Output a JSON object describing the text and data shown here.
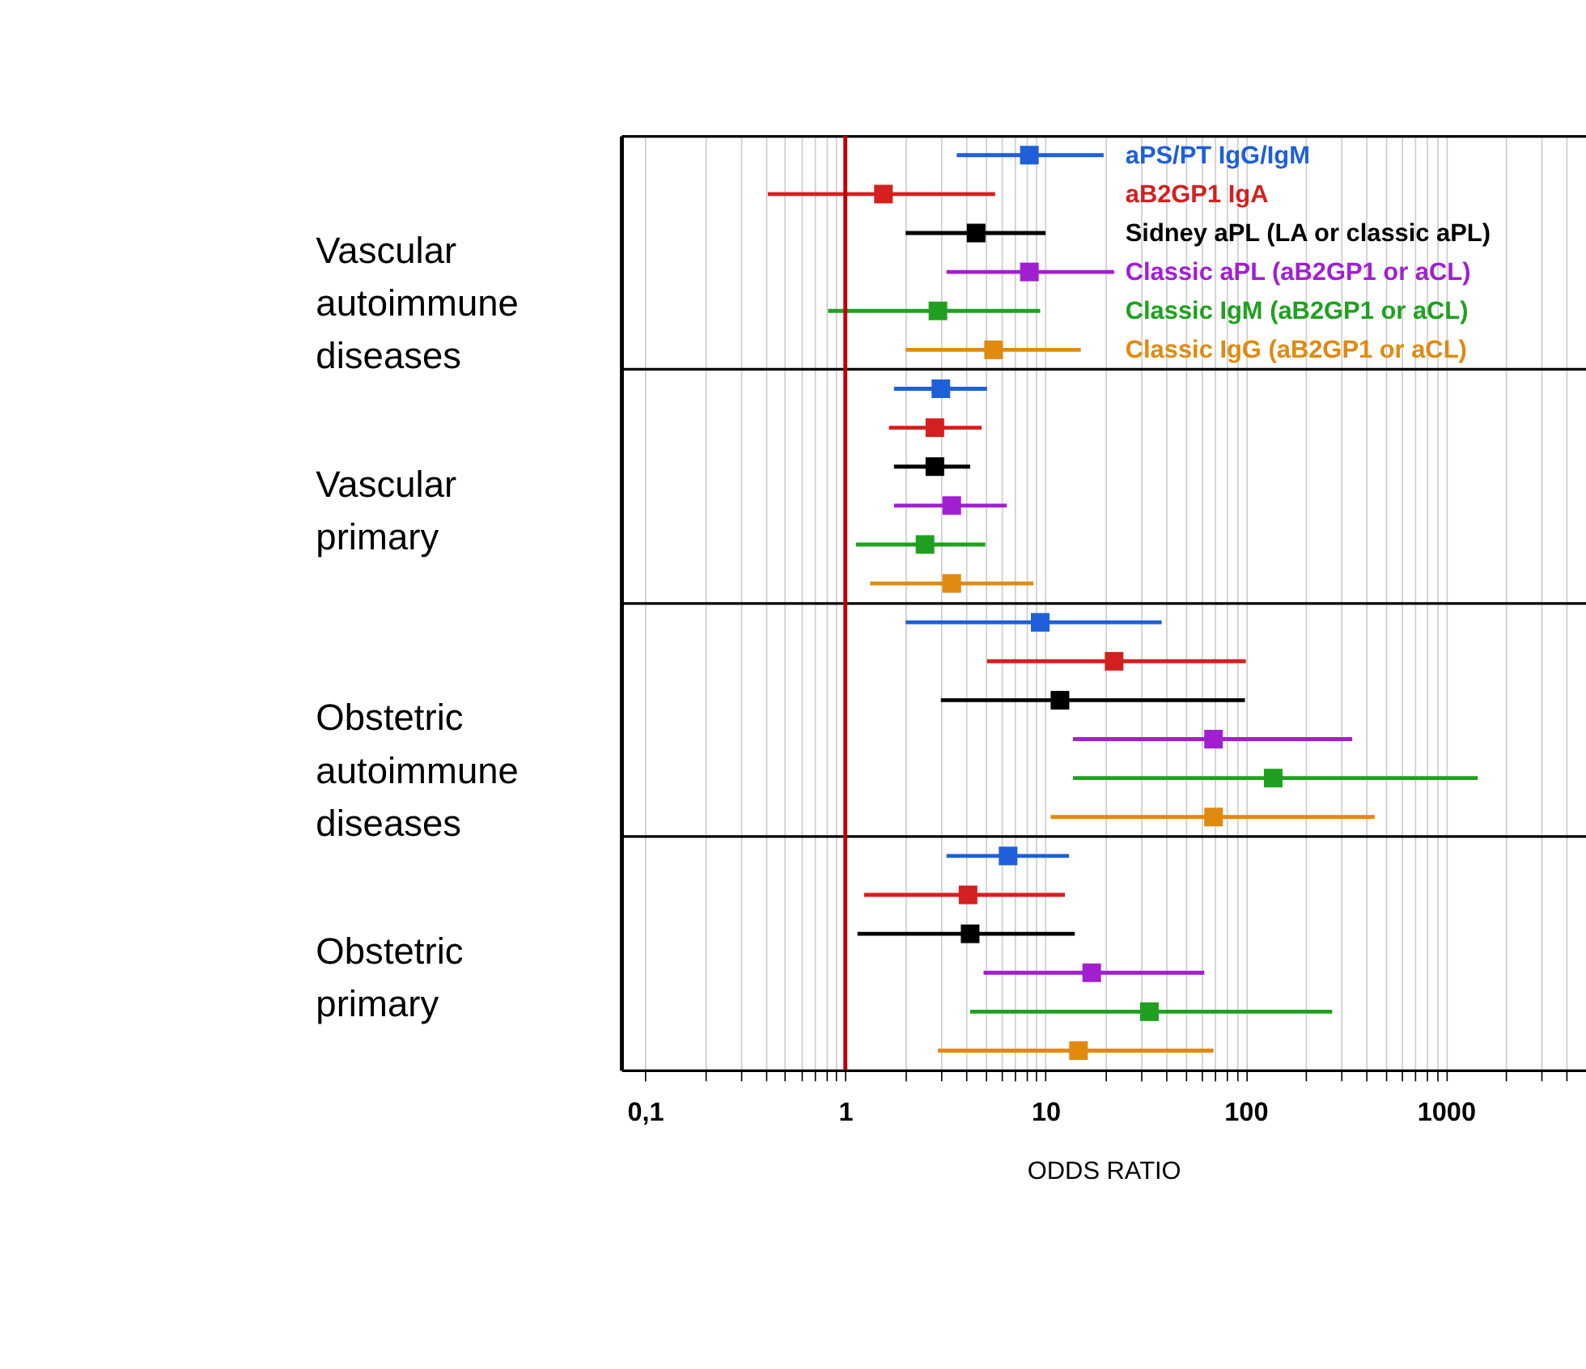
{
  "chart_data": {
    "type": "scatter",
    "orientation": "horizontal",
    "log": "x",
    "xlabel": "ODDS RATIO",
    "annotations": [
      "Vascular autoimmune diseases",
      "Vascular primary",
      "Obstetric autoimmune diseases",
      "Obstetric primary"
    ],
    "categories": [
      null,
      null,
      null,
      null,
      null,
      null,
      null,
      null,
      null,
      null,
      null,
      null,
      null,
      null,
      null,
      null,
      null,
      null,
      null,
      null,
      null,
      null,
      null,
      null
    ],
    "xlim": [
      0.076,
      5000
    ],
    "xticks": [
      {
        "value": 0.1,
        "label": "0,1"
      },
      {
        "value": 0.2,
        "label": null
      },
      {
        "value": 0.3,
        "label": null
      },
      {
        "value": 0.4,
        "label": null
      },
      {
        "value": 0.5,
        "label": null
      },
      {
        "value": 0.6,
        "label": null
      },
      {
        "value": 0.7,
        "label": null
      },
      {
        "value": 0.8,
        "label": null
      },
      {
        "value": 0.9,
        "label": null
      },
      1,
      {
        "value": 2,
        "label": null
      },
      {
        "value": 3,
        "label": null
      },
      {
        "value": 4,
        "label": null
      },
      {
        "value": 5,
        "label": null
      },
      {
        "value": 6,
        "label": null
      },
      {
        "value": 7,
        "label": null
      },
      {
        "value": 8,
        "label": null
      },
      {
        "value": 9,
        "label": null
      },
      10,
      {
        "value": 20,
        "label": null
      },
      {
        "value": 30,
        "label": null
      },
      {
        "value": 40,
        "label": null
      },
      {
        "value": 50,
        "label": null
      },
      {
        "value": 60,
        "label": null
      },
      {
        "value": 70,
        "label": null
      },
      {
        "value": 80,
        "label": null
      },
      {
        "value": 90,
        "label": null
      },
      100,
      {
        "value": 200,
        "label": null
      },
      {
        "value": 300,
        "label": null
      },
      {
        "value": 400,
        "label": null
      },
      {
        "value": 500,
        "label": null
      },
      {
        "value": 600,
        "label": null
      },
      {
        "value": 700,
        "label": null
      },
      {
        "value": 800,
        "label": null
      },
      {
        "value": 900,
        "label": null
      },
      1000,
      {
        "value": 2000,
        "label": null
      },
      {
        "value": 3000,
        "label": null
      },
      {
        "value": 4000,
        "label": null
      }
    ],
    "tick_labels": "x",
    "grid": "x",
    "marker": "square",
    "ref_lines": [
      {
        "axis": "x",
        "value": 1,
        "color": "#c00000"
      }
    ],
    "series": [
      {
        "name": "aPS/PT IgG/IgM",
        "color": "#1f5fd8",
        "values": [
          8.3,
          null,
          null,
          null,
          null,
          null,
          3.0,
          null,
          null,
          null,
          null,
          null,
          9.4,
          null,
          null,
          null,
          null,
          null,
          6.5,
          null,
          null,
          null,
          null,
          null
        ],
        "errors": [
          [
            3.6,
            19.5
          ],
          null,
          null,
          null,
          null,
          null,
          [
            1.75,
            5.1
          ],
          null,
          null,
          null,
          null,
          null,
          [
            2.0,
            38
          ],
          null,
          null,
          null,
          null,
          null,
          [
            3.2,
            13.1
          ],
          null,
          null,
          null,
          null,
          null
        ]
      },
      {
        "name": "aB2GP1 IgA",
        "color": "#d42020",
        "values": [
          null,
          1.55,
          null,
          null,
          null,
          null,
          null,
          2.8,
          null,
          null,
          null,
          null,
          null,
          22,
          null,
          null,
          null,
          null,
          null,
          4.1,
          null,
          null,
          null,
          null
        ],
        "errors": [
          null,
          [
            0.41,
            5.6
          ],
          null,
          null,
          null,
          null,
          null,
          [
            1.65,
            4.8
          ],
          null,
          null,
          null,
          null,
          null,
          [
            5.1,
            100
          ],
          null,
          null,
          null,
          null,
          null,
          [
            1.24,
            12.5
          ],
          null,
          null,
          null,
          null
        ]
      },
      {
        "name": "Sidney aPL (LA or classic aPL)",
        "color": "#000000",
        "values": [
          null,
          null,
          4.5,
          null,
          null,
          null,
          null,
          null,
          2.8,
          null,
          null,
          null,
          null,
          null,
          11.8,
          null,
          null,
          null,
          null,
          null,
          4.2,
          null,
          null,
          null
        ],
        "errors": [
          null,
          null,
          [
            2.0,
            10
          ],
          null,
          null,
          null,
          null,
          null,
          [
            1.75,
            4.2
          ],
          null,
          null,
          null,
          null,
          null,
          [
            3.0,
            99
          ],
          null,
          null,
          null,
          null,
          null,
          [
            1.15,
            14
          ],
          null,
          null,
          null
        ]
      },
      {
        "name": "Classic aPL (aB2GP1 or aCL)",
        "color": "#a020d0",
        "values": [
          null,
          null,
          null,
          8.3,
          null,
          null,
          null,
          null,
          null,
          3.4,
          null,
          null,
          null,
          null,
          null,
          69,
          null,
          null,
          null,
          null,
          null,
          17,
          null,
          null
        ],
        "errors": [
          null,
          null,
          null,
          [
            3.2,
            22
          ],
          null,
          null,
          null,
          null,
          null,
          [
            1.75,
            6.4
          ],
          null,
          null,
          null,
          null,
          null,
          [
            13.7,
            340
          ],
          null,
          null,
          null,
          null,
          null,
          [
            4.9,
            62
          ],
          null,
          null
        ]
      },
      {
        "name": "Classic IgM (aB2GP1 or aCL)",
        "color": "#20a020",
        "values": [
          null,
          null,
          null,
          null,
          2.9,
          null,
          null,
          null,
          null,
          null,
          2.5,
          null,
          null,
          null,
          null,
          null,
          137,
          null,
          null,
          null,
          null,
          null,
          33,
          null
        ],
        "errors": [
          null,
          null,
          null,
          null,
          [
            0.82,
            9.4
          ],
          null,
          null,
          null,
          null,
          null,
          [
            1.13,
            5.0
          ],
          null,
          null,
          null,
          null,
          null,
          [
            13.7,
            1440
          ],
          null,
          null,
          null,
          null,
          null,
          [
            4.2,
            270
          ],
          null
        ]
      },
      {
        "name": "Classic IgG (aB2GP1 or aCL)",
        "color": "#e08a10",
        "values": [
          null,
          null,
          null,
          null,
          null,
          5.5,
          null,
          null,
          null,
          null,
          null,
          3.4,
          null,
          null,
          null,
          null,
          null,
          69,
          null,
          null,
          null,
          null,
          null,
          14.6
        ],
        "errors": [
          null,
          null,
          null,
          null,
          null,
          [
            2.0,
            15
          ],
          null,
          null,
          null,
          null,
          null,
          [
            1.33,
            8.7
          ],
          null,
          null,
          null,
          null,
          null,
          [
            10.6,
            440
          ],
          null,
          null,
          null,
          null,
          null,
          [
            2.9,
            69
          ]
        ]
      }
    ]
  }
}
